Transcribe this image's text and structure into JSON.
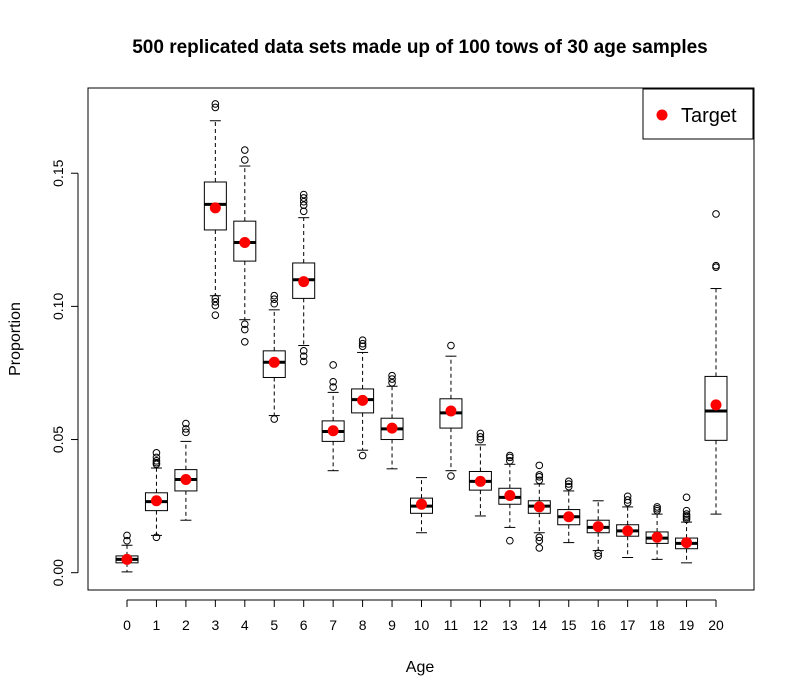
{
  "chart_data": {
    "type": "boxplot",
    "title": "500 replicated data sets made up of 100 tows of 30 age samples",
    "xlabel": "Age",
    "ylabel": "Proportion",
    "ylim": [
      -0.0065,
      0.182
    ],
    "yticks": [
      "0.00",
      "0.05",
      "0.10",
      "0.15"
    ],
    "legend": {
      "label": "Target",
      "position": "top-right"
    },
    "target_color": "#ff0000",
    "categories": [
      "0",
      "1",
      "2",
      "3",
      "4",
      "5",
      "6",
      "7",
      "8",
      "9",
      "10",
      "11",
      "12",
      "13",
      "14",
      "15",
      "16",
      "17",
      "18",
      "19",
      "20"
    ],
    "boxes": [
      {
        "q1": 0.0037,
        "median": 0.005,
        "q3": 0.0063,
        "whisker_low": 0.0003,
        "whisker_high": 0.0103,
        "outliers": [
          0.012,
          0.014
        ],
        "target": 0.005
      },
      {
        "q1": 0.0233,
        "median": 0.0267,
        "q3": 0.03,
        "whisker_low": 0.014,
        "whisker_high": 0.0393,
        "outliers": [
          0.0133,
          0.0407,
          0.0413,
          0.042,
          0.0433,
          0.045
        ],
        "target": 0.027
      },
      {
        "q1": 0.0307,
        "median": 0.035,
        "q3": 0.0387,
        "whisker_low": 0.0197,
        "whisker_high": 0.0493,
        "outliers": [
          0.0527,
          0.054,
          0.056
        ],
        "target": 0.035
      },
      {
        "q1": 0.1287,
        "median": 0.1383,
        "q3": 0.1467,
        "whisker_low": 0.104,
        "whisker_high": 0.1697,
        "outliers": [
          0.0967,
          0.1003,
          0.1017,
          0.103,
          0.1747,
          0.176
        ],
        "target": 0.137
      },
      {
        "q1": 0.117,
        "median": 0.124,
        "q3": 0.132,
        "whisker_low": 0.095,
        "whisker_high": 0.1527,
        "outliers": [
          0.0867,
          0.0913,
          0.0933,
          0.155,
          0.1587
        ],
        "target": 0.124
      },
      {
        "q1": 0.0733,
        "median": 0.079,
        "q3": 0.0833,
        "whisker_low": 0.059,
        "whisker_high": 0.0987,
        "outliers": [
          0.0577,
          0.101,
          0.1027,
          0.104
        ],
        "target": 0.079
      },
      {
        "q1": 0.103,
        "median": 0.11,
        "q3": 0.1163,
        "whisker_low": 0.0853,
        "whisker_high": 0.1333,
        "outliers": [
          0.0793,
          0.0813,
          0.0833,
          0.1357,
          0.138,
          0.1393,
          0.1407,
          0.142
        ],
        "target": 0.1093
      },
      {
        "q1": 0.0493,
        "median": 0.053,
        "q3": 0.057,
        "whisker_low": 0.0383,
        "whisker_high": 0.0677,
        "outliers": [
          0.0697,
          0.0717,
          0.078
        ],
        "target": 0.0533
      },
      {
        "q1": 0.06,
        "median": 0.065,
        "q3": 0.069,
        "whisker_low": 0.046,
        "whisker_high": 0.0827,
        "outliers": [
          0.044,
          0.085,
          0.086,
          0.0873
        ],
        "target": 0.0647
      },
      {
        "q1": 0.05,
        "median": 0.054,
        "q3": 0.058,
        "whisker_low": 0.039,
        "whisker_high": 0.07,
        "outliers": [
          0.0713,
          0.0727,
          0.074
        ],
        "target": 0.0543
      },
      {
        "q1": 0.0223,
        "median": 0.025,
        "q3": 0.028,
        "whisker_low": 0.015,
        "whisker_high": 0.0357,
        "outliers": [],
        "target": 0.0257
      },
      {
        "q1": 0.0543,
        "median": 0.06,
        "q3": 0.0653,
        "whisker_low": 0.0383,
        "whisker_high": 0.0813,
        "outliers": [
          0.0363,
          0.0853
        ],
        "target": 0.0607
      },
      {
        "q1": 0.031,
        "median": 0.0343,
        "q3": 0.038,
        "whisker_low": 0.0213,
        "whisker_high": 0.048,
        "outliers": [
          0.05,
          0.051,
          0.0523
        ],
        "target": 0.0343
      },
      {
        "q1": 0.0257,
        "median": 0.0283,
        "q3": 0.0317,
        "whisker_low": 0.017,
        "whisker_high": 0.0407,
        "outliers": [
          0.012,
          0.042,
          0.0433,
          0.044
        ],
        "target": 0.029
      },
      {
        "q1": 0.0223,
        "median": 0.025,
        "q3": 0.027,
        "whisker_low": 0.015,
        "whisker_high": 0.0333,
        "outliers": [
          0.0093,
          0.012,
          0.0133,
          0.0347,
          0.036,
          0.0367,
          0.0403
        ],
        "target": 0.0247
      },
      {
        "q1": 0.018,
        "median": 0.021,
        "q3": 0.0237,
        "whisker_low": 0.0113,
        "whisker_high": 0.0307,
        "outliers": [
          0.0323,
          0.0333,
          0.0343
        ],
        "target": 0.021
      },
      {
        "q1": 0.015,
        "median": 0.017,
        "q3": 0.0197,
        "whisker_low": 0.0083,
        "whisker_high": 0.027,
        "outliers": [
          0.0063,
          0.0073
        ],
        "target": 0.0173
      },
      {
        "q1": 0.0137,
        "median": 0.0157,
        "q3": 0.018,
        "whisker_low": 0.0057,
        "whisker_high": 0.0247,
        "outliers": [
          0.0263,
          0.0273,
          0.0287
        ],
        "target": 0.0157
      },
      {
        "q1": 0.011,
        "median": 0.013,
        "q3": 0.0153,
        "whisker_low": 0.005,
        "whisker_high": 0.022,
        "outliers": [
          0.0233,
          0.024,
          0.0247
        ],
        "target": 0.0133
      },
      {
        "q1": 0.009,
        "median": 0.011,
        "q3": 0.013,
        "whisker_low": 0.0037,
        "whisker_high": 0.019,
        "outliers": [
          0.02,
          0.0207,
          0.0213,
          0.022,
          0.0233,
          0.0283
        ],
        "target": 0.0113
      },
      {
        "q1": 0.0497,
        "median": 0.0607,
        "q3": 0.0737,
        "whisker_low": 0.022,
        "whisker_high": 0.1067,
        "outliers": [
          0.1147,
          0.1153,
          0.1347
        ],
        "target": 0.063
      }
    ]
  }
}
